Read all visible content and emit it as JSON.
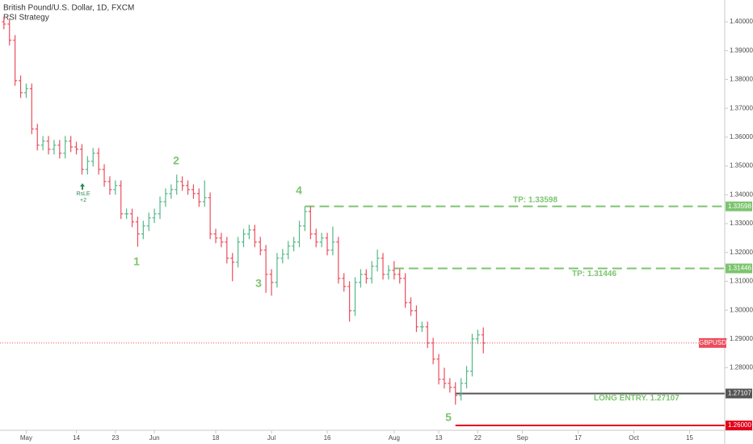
{
  "chart_data": {
    "type": "ohlc",
    "title": "British Pound/U.S. Dollar, 1D, FXCM",
    "subtitle": "RSI Strategy",
    "series": {
      "name": "GBPUSD",
      "up_color": "#53b987",
      "down_color": "#eb4d5c",
      "open": [
        1.4,
        1.3992,
        1.3936,
        1.3796,
        1.3754,
        1.3768,
        1.3628,
        1.3572,
        1.3586,
        1.3558,
        1.3572,
        1.3544,
        1.3586,
        1.3566,
        1.3558,
        1.3488,
        1.3516,
        1.3544,
        1.3488,
        1.3446,
        1.3418,
        1.3432,
        1.3334,
        1.3334,
        1.3306,
        1.3264,
        1.3292,
        1.332,
        1.3334,
        1.3376,
        1.3404,
        1.3418,
        1.3446,
        1.3432,
        1.3418,
        1.3404,
        1.3376,
        1.339,
        1.3264,
        1.325,
        1.3236,
        1.318,
        1.3166,
        1.3236,
        1.3264,
        1.3278,
        1.3236,
        1.3208,
        1.3124,
        1.3096,
        1.318,
        1.3194,
        1.3222,
        1.3236,
        1.3292,
        1.3342,
        1.3264,
        1.3236,
        1.325,
        1.3208,
        1.3236,
        1.311,
        1.3082,
        1.2998,
        1.3096,
        1.3124,
        1.311,
        1.3152,
        1.318,
        1.3124,
        1.3138,
        1.3124,
        1.311,
        1.3026,
        1.2998,
        1.2942,
        1.2942,
        1.2886,
        1.283,
        1.276,
        1.2746,
        1.2732,
        1.2704,
        1.2746,
        1.2788,
        1.29,
        1.2914
      ],
      "high": [
        1.4018,
        1.401,
        1.3954,
        1.3814,
        1.3786,
        1.3786,
        1.3646,
        1.3604,
        1.3604,
        1.359,
        1.359,
        1.3604,
        1.3604,
        1.3584,
        1.3576,
        1.3534,
        1.3562,
        1.3562,
        1.3506,
        1.3464,
        1.345,
        1.345,
        1.3352,
        1.3352,
        1.3324,
        1.331,
        1.3338,
        1.3352,
        1.3394,
        1.3422,
        1.3436,
        1.347,
        1.3464,
        1.345,
        1.3436,
        1.3422,
        1.345,
        1.3408,
        1.3282,
        1.3268,
        1.3254,
        1.3198,
        1.3254,
        1.3282,
        1.3296,
        1.3296,
        1.3254,
        1.3226,
        1.3142,
        1.3198,
        1.3212,
        1.324,
        1.3254,
        1.331,
        1.336,
        1.336,
        1.3282,
        1.3268,
        1.3268,
        1.329,
        1.3254,
        1.3128,
        1.31,
        1.3114,
        1.3142,
        1.3142,
        1.317,
        1.321,
        1.3198,
        1.3156,
        1.317,
        1.3142,
        1.3128,
        1.3044,
        1.3016,
        1.296,
        1.296,
        1.2904,
        1.2848,
        1.28,
        1.2764,
        1.275,
        1.2764,
        1.2806,
        1.2918,
        1.2932,
        1.294
      ],
      "low": [
        1.3974,
        1.3918,
        1.3778,
        1.3736,
        1.3736,
        1.361,
        1.3554,
        1.3554,
        1.354,
        1.354,
        1.3526,
        1.3526,
        1.3548,
        1.354,
        1.347,
        1.347,
        1.3498,
        1.347,
        1.3428,
        1.34,
        1.34,
        1.3316,
        1.3316,
        1.3288,
        1.322,
        1.3246,
        1.3274,
        1.3302,
        1.3316,
        1.3358,
        1.3386,
        1.34,
        1.3414,
        1.34,
        1.3386,
        1.3358,
        1.3358,
        1.3246,
        1.3232,
        1.3218,
        1.3162,
        1.31,
        1.3148,
        1.3218,
        1.3246,
        1.3218,
        1.319,
        1.306,
        1.305,
        1.3078,
        1.3162,
        1.3176,
        1.3204,
        1.3218,
        1.3274,
        1.3246,
        1.3218,
        1.3218,
        1.319,
        1.319,
        1.3092,
        1.3064,
        1.296,
        1.298,
        1.3078,
        1.3092,
        1.3092,
        1.3134,
        1.3106,
        1.3106,
        1.3106,
        1.3092,
        1.3008,
        1.298,
        1.2924,
        1.2924,
        1.2868,
        1.2812,
        1.2742,
        1.2728,
        1.2714,
        1.2672,
        1.2686,
        1.2728,
        1.277,
        1.2882,
        1.285
      ],
      "close": [
        1.3992,
        1.3936,
        1.3796,
        1.3754,
        1.3768,
        1.3628,
        1.3572,
        1.3586,
        1.3558,
        1.3572,
        1.3544,
        1.3586,
        1.3566,
        1.3558,
        1.3488,
        1.3516,
        1.3544,
        1.3488,
        1.3446,
        1.3418,
        1.3432,
        1.3334,
        1.3334,
        1.3306,
        1.3264,
        1.3292,
        1.332,
        1.3334,
        1.3376,
        1.3404,
        1.3418,
        1.3446,
        1.3432,
        1.3418,
        1.3404,
        1.3376,
        1.339,
        1.3264,
        1.325,
        1.3236,
        1.318,
        1.3166,
        1.3236,
        1.3264,
        1.3278,
        1.3236,
        1.3208,
        1.3124,
        1.3096,
        1.318,
        1.3194,
        1.3222,
        1.3236,
        1.3292,
        1.3342,
        1.3264,
        1.3236,
        1.325,
        1.3208,
        1.3236,
        1.311,
        1.3082,
        1.2998,
        1.3096,
        1.3124,
        1.311,
        1.3152,
        1.318,
        1.3124,
        1.3138,
        1.3124,
        1.311,
        1.3026,
        1.2998,
        1.2942,
        1.2942,
        1.2886,
        1.283,
        1.276,
        1.2746,
        1.2732,
        1.2704,
        1.2746,
        1.2788,
        1.29,
        1.2914,
        1.2886
      ]
    },
    "xlim": [
      -0.7,
      129.3
    ],
    "xticks": [
      {
        "value": 4,
        "label": "May"
      },
      {
        "value": 13,
        "label": "14"
      },
      {
        "value": 20,
        "label": "23"
      },
      {
        "value": 27,
        "label": "Jun"
      },
      {
        "value": 38,
        "label": "18"
      },
      {
        "value": 48,
        "label": "Jul"
      },
      {
        "value": 58,
        "label": "16"
      },
      {
        "value": 70,
        "label": "Aug"
      },
      {
        "value": 78,
        "label": "13"
      },
      {
        "value": 85,
        "label": "22"
      },
      {
        "value": 93,
        "label": "Sep"
      },
      {
        "value": 103,
        "label": "17"
      },
      {
        "value": 113,
        "label": "Oct"
      },
      {
        "value": 123,
        "label": "15"
      }
    ],
    "ylim": [
      1.25832,
      1.40756
    ],
    "yticks": [
      {
        "value": 1.28,
        "label": "1.28000"
      },
      {
        "value": 1.29,
        "label": "1.29000"
      },
      {
        "value": 1.3,
        "label": "1.30000"
      },
      {
        "value": 1.31,
        "label": "1.31000"
      },
      {
        "value": 1.32,
        "label": "1.32000"
      },
      {
        "value": 1.33,
        "label": "1.33000"
      },
      {
        "value": 1.34,
        "label": "1.34000"
      },
      {
        "value": 1.35,
        "label": "1.35000"
      },
      {
        "value": 1.36,
        "label": "1.36000"
      },
      {
        "value": 1.37,
        "label": "1.37000"
      },
      {
        "value": 1.38,
        "label": "1.38000"
      },
      {
        "value": 1.39,
        "label": "1.39000"
      },
      {
        "value": 1.4,
        "label": "1.40000"
      }
    ],
    "levels": [
      {
        "value": 1.33598,
        "label": "TP: 1.33598",
        "color": "#7cc46f",
        "style": "dashed"
      },
      {
        "value": 1.31446,
        "label": "TP: 1.31446",
        "color": "#7cc46f",
        "style": "dashed"
      },
      {
        "value": 1.27107,
        "label": "LONG ENTRY. 1.27107",
        "color": "#555555",
        "style": "solid"
      },
      {
        "value": 1.26,
        "value_label": "1.26000",
        "color": "#e3001b",
        "style": "solid"
      }
    ],
    "annotations": [
      "1",
      "2",
      "3",
      "4",
      "5"
    ],
    "signal": {
      "label": "RsLE",
      "qty": "+2"
    }
  }
}
